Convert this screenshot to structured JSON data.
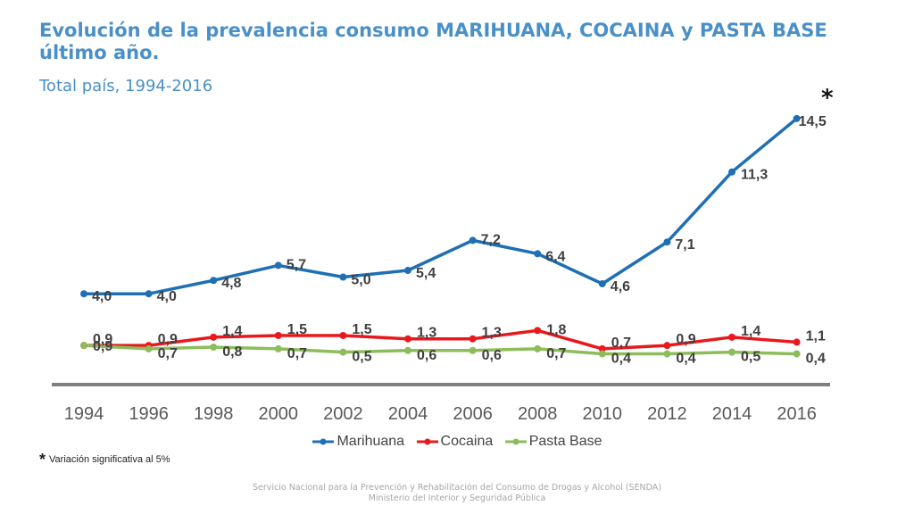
{
  "header": {
    "title": "Evolución de la prevalencia consumo MARIHUANA, COCAINA y PASTA BASE último año.",
    "subtitle": "Total país, 1994-2016",
    "significance_marker": "*"
  },
  "footnote": {
    "marker": "*",
    "text": "Variación significativa al 5%"
  },
  "footer": {
    "line1": "Servicio Nacional para la Prevención y Rehabilitación del Consumo de Drogas y Alcohol (SENDA)",
    "line2": "Ministerio del Interior y Seguridad Pública"
  },
  "chart_data": {
    "type": "line",
    "title": "Evolución de la prevalencia consumo MARIHUANA, COCAINA y PASTA BASE último año.",
    "subtitle": "Total país, 1994-2016",
    "categories": [
      "1994",
      "1996",
      "1998",
      "2000",
      "2002",
      "2004",
      "2006",
      "2008",
      "2010",
      "2012",
      "2014",
      "2016"
    ],
    "ylim": [
      0,
      16
    ],
    "grid": false,
    "legend": "bottom",
    "series": [
      {
        "name": "Marihuana",
        "color": "#1f6fb5",
        "values": [
          4.0,
          4.0,
          4.8,
          5.7,
          5.0,
          5.4,
          7.2,
          6.4,
          4.6,
          7.1,
          11.3,
          14.5
        ],
        "labels": [
          "4,0",
          "4,0",
          "4,8",
          "5,7",
          "5,0",
          "5,4",
          "7,2",
          "6,4",
          "4,6",
          "7,1",
          "11,3",
          "14,5"
        ]
      },
      {
        "name": "Cocaina",
        "color": "#e8191d",
        "values": [
          0.9,
          0.9,
          1.4,
          1.5,
          1.5,
          1.3,
          1.3,
          1.8,
          0.7,
          0.9,
          1.4,
          1.1
        ],
        "labels": [
          "0,9",
          "0,9",
          "1,4",
          "1,5",
          "1,5",
          "1,3",
          "1,3",
          "1,8",
          "0,7",
          "0,9",
          "1,4",
          "1,1"
        ]
      },
      {
        "name": "Pasta Base",
        "color": "#8cbd5a",
        "values": [
          0.9,
          0.7,
          0.8,
          0.7,
          0.5,
          0.6,
          0.6,
          0.7,
          0.4,
          0.4,
          0.5,
          0.4
        ],
        "labels": [
          "0,9",
          "0,7",
          "0,8",
          "0,7",
          "0,5",
          "0,6",
          "0,6",
          "0,7",
          "0,4",
          "0,4",
          "0,5",
          "0,4"
        ]
      }
    ]
  }
}
